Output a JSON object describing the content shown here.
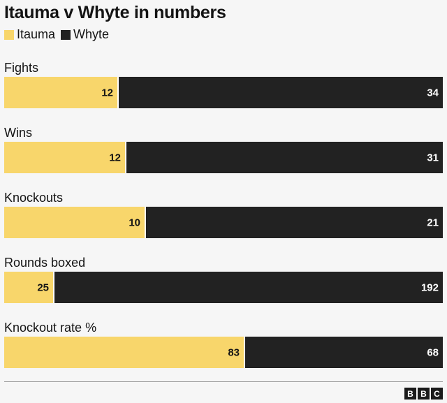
{
  "colors": {
    "itauma": "#f8d66b",
    "whyte": "#222222"
  },
  "chart_data": {
    "type": "bar",
    "title": "Itauma v Whyte in numbers",
    "stacked": true,
    "orientation": "horizontal",
    "categories": [
      "Fights",
      "Wins",
      "Knockouts",
      "Rounds boxed",
      "Knockout rate %"
    ],
    "series": [
      {
        "name": "Itauma",
        "values": [
          12,
          12,
          10,
          25,
          83
        ]
      },
      {
        "name": "Whyte",
        "values": [
          34,
          31,
          21,
          192,
          68
        ]
      }
    ],
    "legend_position": "top-left",
    "grid": false
  },
  "footer": {
    "logo": [
      "B",
      "B",
      "C"
    ]
  }
}
